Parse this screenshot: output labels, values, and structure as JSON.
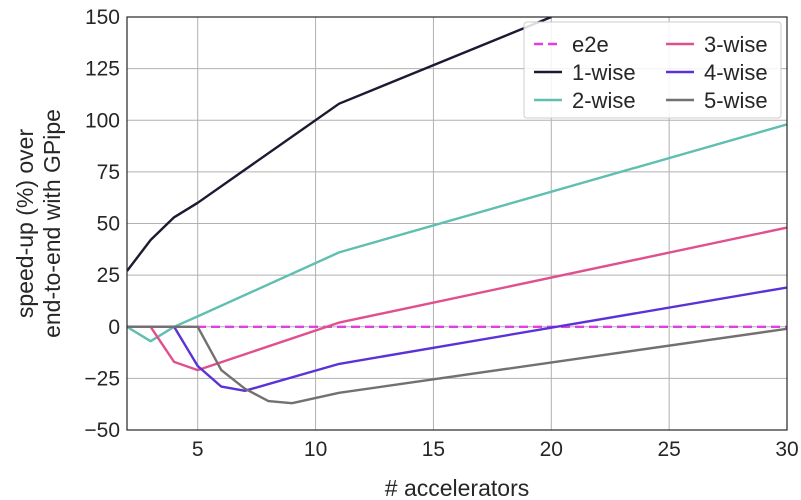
{
  "chart_data": {
    "type": "line",
    "title": "",
    "xlabel": "# accelerators",
    "ylabel_lines": [
      "speed-up (%) over",
      "end-to-end with GPipe"
    ],
    "xlim": [
      2,
      30
    ],
    "ylim": [
      -50,
      150
    ],
    "xticks": [
      5,
      10,
      15,
      20,
      25,
      30
    ],
    "yticks": [
      -50,
      -25,
      0,
      25,
      50,
      75,
      100,
      125,
      150
    ],
    "grid": true,
    "legend_position": "top-right",
    "legend_columns": 2,
    "series": [
      {
        "name": "e2e",
        "color": "#e040e0",
        "dash": true,
        "x": [
          2,
          30
        ],
        "y": [
          0,
          0
        ]
      },
      {
        "name": "1-wise",
        "color": "#1a1a33",
        "dash": false,
        "x": [
          2,
          3,
          4,
          5,
          11,
          20
        ],
        "y": [
          27,
          42,
          53,
          60,
          108,
          150
        ]
      },
      {
        "name": "2-wise",
        "color": "#5fbfb0",
        "dash": false,
        "x": [
          2,
          3,
          4,
          5,
          11,
          30
        ],
        "y": [
          0,
          -7,
          0,
          5,
          36,
          98
        ]
      },
      {
        "name": "3-wise",
        "color": "#e0508f",
        "dash": false,
        "x": [
          2,
          3,
          4,
          5,
          11,
          30
        ],
        "y": [
          0,
          0,
          -17,
          -21,
          2,
          48
        ]
      },
      {
        "name": "4-wise",
        "color": "#5a32d8",
        "dash": false,
        "x": [
          2,
          4,
          5,
          6,
          7,
          11,
          30
        ],
        "y": [
          0,
          0,
          -19,
          -29,
          -31,
          -18,
          19
        ]
      },
      {
        "name": "5-wise",
        "color": "#757070",
        "dash": false,
        "x": [
          2,
          5,
          6,
          7,
          8,
          9,
          11,
          30
        ],
        "y": [
          0,
          0,
          -21,
          -30,
          -36,
          -37,
          -32,
          -1
        ]
      }
    ]
  }
}
